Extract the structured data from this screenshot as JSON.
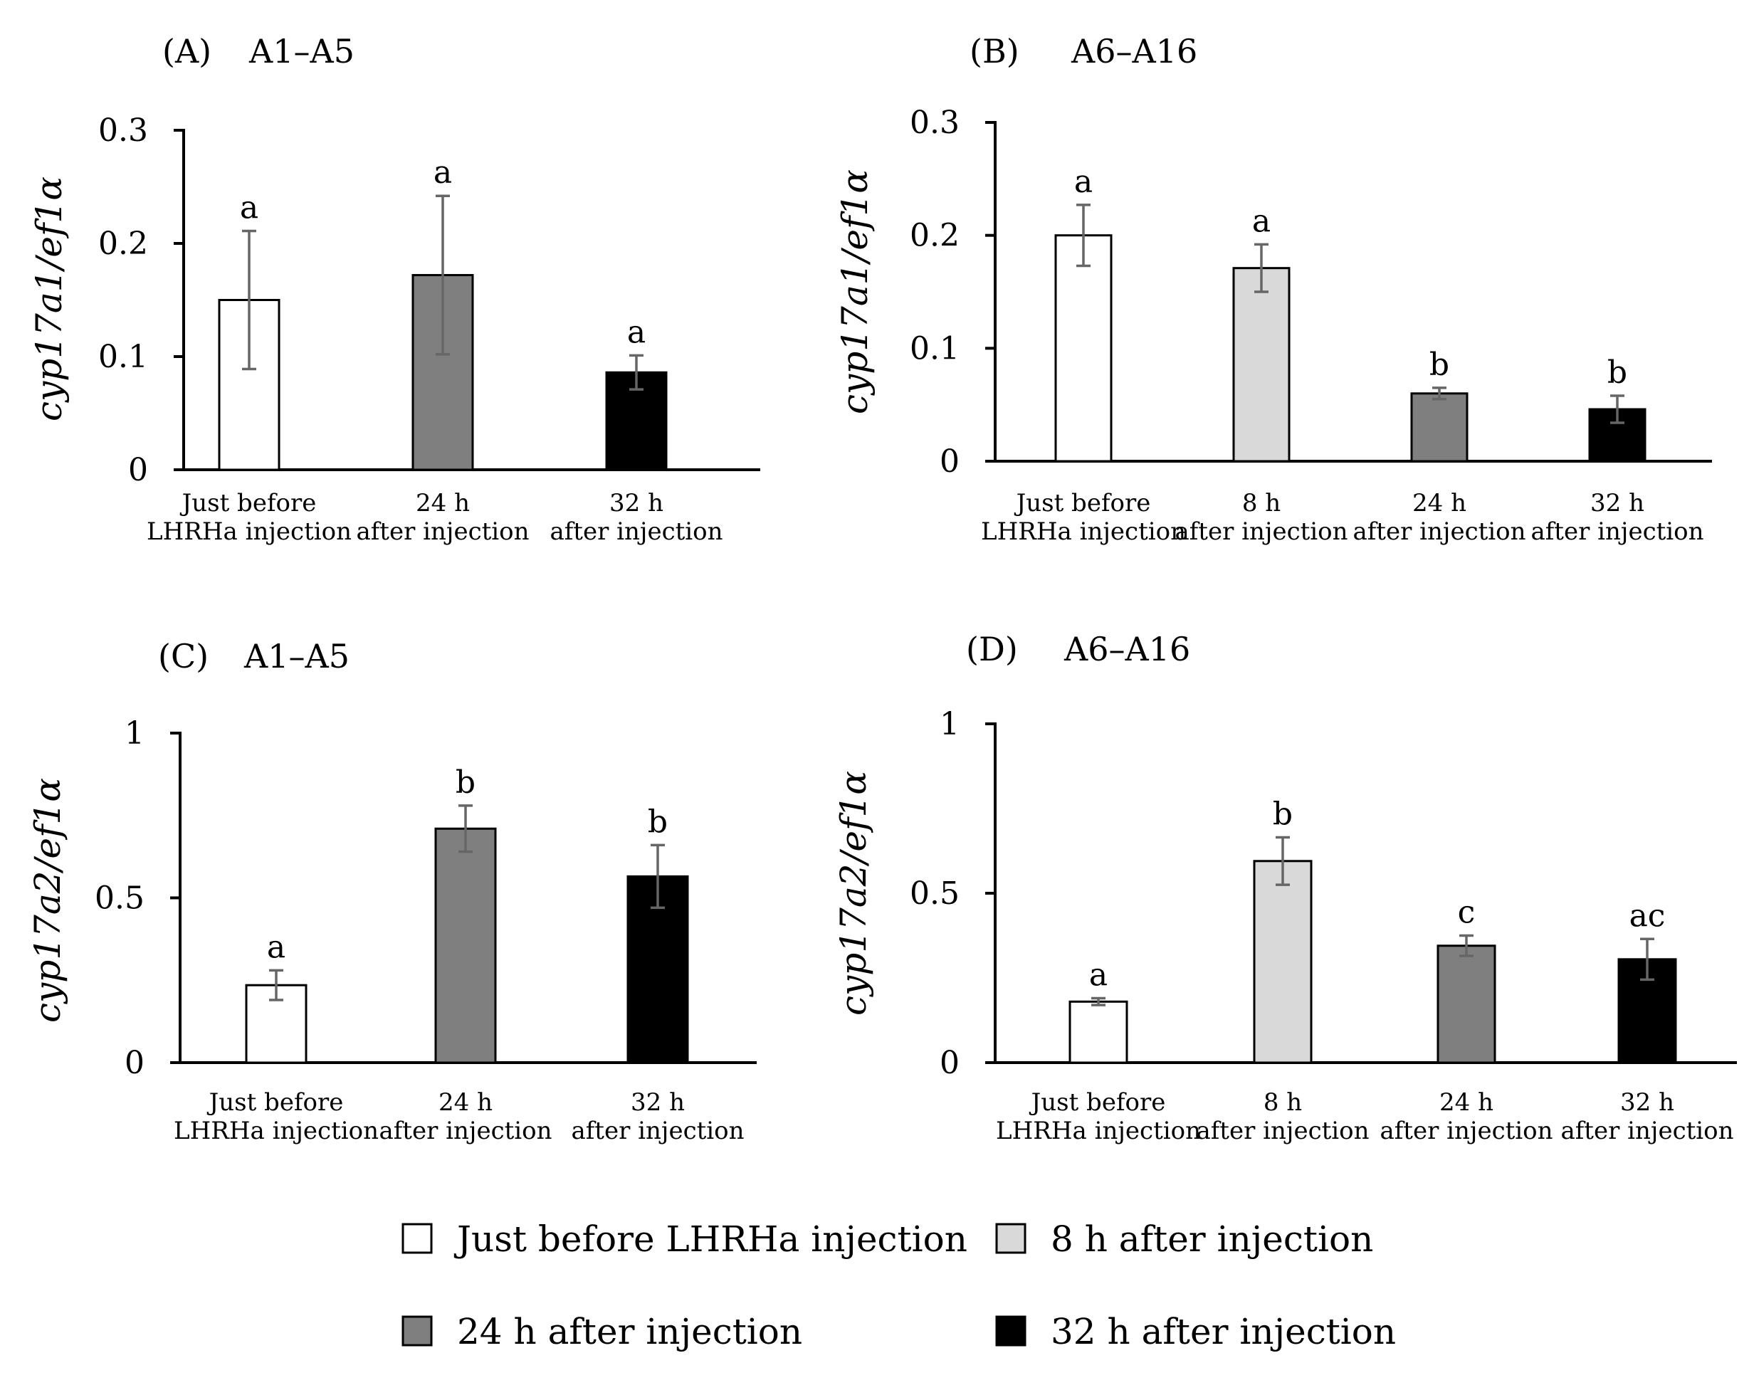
{
  "legend": [
    {
      "label": "Just before LHRHa injection",
      "color": "#ffffff"
    },
    {
      "label": "8 h after injection",
      "color": "#d9d9d9"
    },
    {
      "label": "24 h after injection",
      "color": "#7f7f7f"
    },
    {
      "label": "32 h after injection",
      "color": "#000000"
    }
  ],
  "chart_data": [
    {
      "type": "bar",
      "panel": "(A)",
      "title": "A1–A5",
      "ylabel": "cyp17a1/ef1α",
      "ylim": [
        0,
        0.3
      ],
      "yticks": [
        "0",
        "0.1",
        "0.2",
        "0.3"
      ],
      "yticks_values": [
        0,
        0.1,
        0.2,
        0.3
      ],
      "categories": [
        [
          "Just before",
          "LHRHa injection"
        ],
        [
          "24 h",
          "after injection"
        ],
        [
          "32 h",
          "after injection"
        ]
      ],
      "values": [
        0.15,
        0.172,
        0.086
      ],
      "errors": [
        0.061,
        0.07,
        0.015
      ],
      "letters": [
        "a",
        "a",
        "a"
      ],
      "colors": [
        "#ffffff",
        "#7f7f7f",
        "#000000"
      ]
    },
    {
      "type": "bar",
      "panel": "(B)",
      "title": "A6–A16",
      "ylabel": "cyp17a1/ef1α",
      "ylim": [
        0,
        0.3
      ],
      "yticks": [
        "0",
        "0.1",
        "0.2",
        "0.3"
      ],
      "yticks_values": [
        0,
        0.1,
        0.2,
        0.3
      ],
      "categories": [
        [
          "Just before",
          "LHRHa injection"
        ],
        [
          "8  h",
          "after injection"
        ],
        [
          "24 h",
          "after injection"
        ],
        [
          "32 h",
          "after injection"
        ]
      ],
      "values": [
        0.2,
        0.171,
        0.06,
        0.046
      ],
      "errors": [
        0.027,
        0.021,
        0.005,
        0.012
      ],
      "letters": [
        "a",
        "a",
        "b",
        "b"
      ],
      "colors": [
        "#ffffff",
        "#d9d9d9",
        "#7f7f7f",
        "#000000"
      ]
    },
    {
      "type": "bar",
      "panel": "(C)",
      "title": "A1–A5",
      "ylabel": "cyp17a2/ef1α",
      "ylim": [
        0,
        1
      ],
      "yticks": [
        "0",
        "0.5",
        "1"
      ],
      "yticks_values": [
        0,
        0.5,
        1
      ],
      "categories": [
        [
          "Just before",
          "LHRHa injection"
        ],
        [
          "24 h",
          "after injection"
        ],
        [
          "32 h",
          "after injection"
        ]
      ],
      "values": [
        0.235,
        0.71,
        0.565
      ],
      "errors": [
        0.045,
        0.07,
        0.095
      ],
      "letters": [
        "a",
        "b",
        "b"
      ],
      "colors": [
        "#ffffff",
        "#7f7f7f",
        "#000000"
      ]
    },
    {
      "type": "bar",
      "panel": "(D)",
      "title": "A6–A16",
      "ylabel": "cyp17a2/ef1α",
      "ylim": [
        0,
        1
      ],
      "yticks": [
        "0",
        "0.5",
        "1"
      ],
      "yticks_values": [
        0,
        0.5,
        1
      ],
      "categories": [
        [
          "Just before",
          "LHRHa injection"
        ],
        [
          "8  h",
          "after injection"
        ],
        [
          "24 h",
          "after injection"
        ],
        [
          "32 h",
          "after injection"
        ]
      ],
      "values": [
        0.18,
        0.595,
        0.345,
        0.305
      ],
      "errors": [
        0.01,
        0.07,
        0.03,
        0.06
      ],
      "letters": [
        "a",
        "b",
        "c",
        "ac"
      ],
      "colors": [
        "#ffffff",
        "#d9d9d9",
        "#7f7f7f",
        "#000000"
      ]
    }
  ]
}
